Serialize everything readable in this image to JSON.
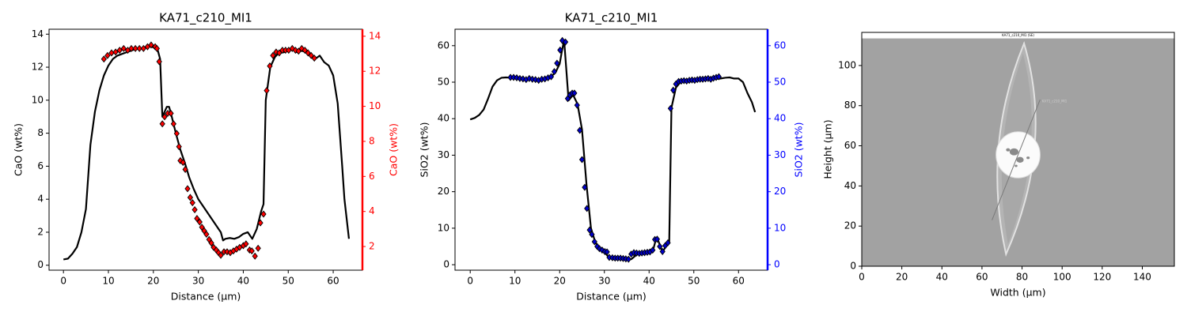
{
  "chart_data": [
    {
      "type": "line",
      "title": "KA71_c210_MI1",
      "x_label": "Distance (µm)",
      "y_label": "CaO (wt%)",
      "y2_label": "CaO (wt%)",
      "y2_color": "#ff0000",
      "xlim": [
        -3.2,
        66.5
      ],
      "xticks": [
        0,
        10,
        20,
        30,
        40,
        50,
        60
      ],
      "ylim": [
        -0.3,
        14.3
      ],
      "yticks": [
        0,
        2,
        4,
        6,
        8,
        10,
        12,
        14
      ],
      "y2lim": [
        0.65,
        14.4
      ],
      "y2ticks": [
        2,
        4,
        6,
        8,
        10,
        12,
        14
      ],
      "series": [
        {
          "color": "#000000",
          "marker": "none",
          "x": [
            0,
            1,
            2,
            3,
            4,
            5,
            6,
            7,
            8,
            9,
            10,
            11,
            12,
            13,
            14,
            15,
            16,
            17,
            18,
            19,
            20,
            21,
            21.5,
            22,
            22.5,
            23,
            23.5,
            24,
            25,
            26,
            27,
            28,
            29,
            30,
            31,
            32,
            33,
            34,
            35,
            35.5,
            36,
            37,
            38,
            39,
            40,
            41,
            42,
            43,
            44,
            44.5,
            45,
            46,
            47,
            48,
            49,
            50,
            51,
            52,
            53,
            54,
            55,
            56,
            57,
            58,
            59,
            60,
            61,
            62,
            62.5,
            63,
            63.5
          ],
          "values": [
            0.35,
            0.4,
            0.7,
            1.1,
            2.0,
            3.4,
            7.3,
            9.3,
            10.6,
            11.5,
            12.1,
            12.5,
            12.7,
            12.8,
            12.9,
            13.0,
            13.1,
            13.1,
            13.2,
            13.3,
            13.2,
            13.0,
            12.5,
            9.0,
            9.3,
            9.6,
            9.6,
            9.1,
            8.0,
            7.0,
            6.2,
            5.3,
            4.6,
            4.0,
            3.6,
            3.2,
            2.8,
            2.4,
            2.0,
            1.5,
            1.6,
            1.65,
            1.6,
            1.7,
            1.9,
            2.0,
            1.6,
            2.2,
            3.3,
            3.7,
            10.0,
            12.0,
            12.6,
            12.9,
            12.9,
            13.0,
            13.1,
            12.9,
            13.0,
            12.9,
            12.8,
            12.5,
            12.7,
            12.3,
            12.1,
            11.5,
            9.8,
            6.0,
            4.0,
            2.8,
            1.6
          ]
        },
        {
          "color": "#ff0000",
          "marker": "diamond",
          "axis": "y2",
          "x": [
            9.0,
            9.8,
            10.7,
            11.6,
            12.5,
            13.4,
            14.3,
            15.1,
            16.0,
            16.9,
            17.8,
            18.7,
            19.5,
            20.4,
            20.8,
            21.3,
            22.0,
            22.5,
            23.2,
            23.9,
            24.5,
            25.2,
            25.7,
            26.0,
            26.6,
            27.1,
            27.6,
            28.2,
            28.7,
            29.2,
            29.7,
            30.3,
            30.8,
            31.3,
            31.8,
            32.4,
            32.9,
            33.4,
            34.0,
            34.5,
            35.0,
            35.7,
            36.4,
            37.1,
            37.8,
            38.5,
            39.2,
            40.0,
            40.6,
            41.4,
            41.9,
            42.6,
            43.3,
            43.8,
            44.5,
            45.2,
            45.9,
            46.6,
            47.3,
            48.0,
            48.7,
            49.4,
            50.1,
            50.9,
            51.6,
            52.3,
            53.0,
            53.7,
            54.4,
            55.1,
            55.8
          ],
          "values": [
            12.7,
            12.9,
            13.05,
            13.1,
            13.2,
            13.3,
            13.2,
            13.3,
            13.3,
            13.3,
            13.3,
            13.4,
            13.5,
            13.4,
            13.3,
            12.55,
            9.0,
            9.4,
            9.6,
            9.6,
            9.0,
            8.45,
            7.7,
            6.9,
            6.8,
            6.4,
            5.3,
            4.8,
            4.5,
            4.1,
            3.6,
            3.4,
            3.1,
            2.9,
            2.7,
            2.4,
            2.2,
            1.95,
            1.8,
            1.65,
            1.5,
            1.7,
            1.7,
            1.65,
            1.75,
            1.85,
            1.95,
            2.05,
            2.15,
            1.8,
            1.75,
            1.45,
            1.9,
            3.35,
            3.85,
            10.9,
            12.3,
            12.9,
            13.1,
            13.05,
            13.2,
            13.2,
            13.2,
            13.3,
            13.2,
            13.15,
            13.3,
            13.2,
            13.05,
            12.9,
            12.75
          ]
        }
      ]
    },
    {
      "type": "line",
      "title": "KA71_c210_MI1",
      "x_label": "Distance (µm)",
      "y_label": "SiO2 (wt%)",
      "y2_label": "SiO2 (wt%)",
      "y2_color": "#0000ff",
      "xlim": [
        -3.4,
        66.5
      ],
      "xticks": [
        0,
        10,
        20,
        30,
        40,
        50,
        60
      ],
      "ylim": [
        -1.5,
        64.5
      ],
      "yticks": [
        0,
        10,
        20,
        30,
        40,
        50,
        60
      ],
      "y2lim": [
        -1.5,
        64.5
      ],
      "y2ticks": [
        0,
        10,
        20,
        30,
        40,
        50,
        60
      ],
      "series": [
        {
          "color": "#000000",
          "marker": "none",
          "x": [
            0,
            1,
            2,
            3,
            4,
            5,
            6,
            7,
            8,
            9,
            10,
            11,
            12,
            13,
            14,
            15,
            16,
            17,
            18,
            19,
            20,
            20.5,
            21,
            22,
            23,
            24,
            25,
            26,
            27,
            28,
            29,
            30,
            31,
            32,
            33,
            34,
            35,
            36,
            37,
            38,
            39,
            40,
            41,
            41.5,
            42,
            43,
            44,
            44.5,
            45,
            46,
            47,
            48,
            50,
            52,
            54,
            56,
            57,
            58,
            59,
            60,
            61,
            62,
            63,
            63.7
          ],
          "values": [
            39.8,
            40.2,
            41.0,
            42.5,
            45.5,
            48.8,
            50.5,
            51.2,
            51.3,
            51.2,
            51.0,
            51.0,
            50.8,
            50.9,
            50.7,
            50.6,
            50.7,
            51.0,
            51.5,
            52.5,
            55.0,
            58.5,
            61.5,
            45.0,
            46.5,
            44.0,
            37.0,
            22.0,
            10.0,
            6.0,
            4.5,
            3.5,
            2.0,
            1.5,
            1.5,
            1.5,
            1.5,
            1.5,
            2.5,
            3.3,
            3.4,
            3.6,
            4.5,
            6.8,
            6.7,
            3.5,
            5.5,
            6.0,
            43.0,
            48.5,
            50.0,
            50.3,
            50.5,
            50.7,
            50.8,
            51.0,
            51.2,
            51.3,
            51.0,
            51.0,
            50.0,
            47.0,
            44.5,
            41.8
          ]
        },
        {
          "color": "#0000cc",
          "marker": "diamond",
          "axis": "y2",
          "x": [
            9.0,
            9.7,
            10.4,
            11.1,
            11.8,
            12.5,
            13.2,
            13.9,
            14.6,
            15.3,
            16.0,
            16.7,
            17.4,
            18.1,
            18.8,
            19.4,
            20.1,
            20.6,
            21.3,
            21.8,
            22.3,
            22.8,
            23.3,
            23.9,
            24.5,
            25.0,
            25.6,
            26.1,
            26.7,
            27.2,
            27.8,
            28.4,
            28.9,
            29.5,
            30.1,
            30.6,
            31.1,
            31.8,
            32.4,
            33.0,
            33.6,
            34.2,
            34.8,
            35.4,
            36.0,
            36.6,
            37.2,
            37.8,
            38.4,
            39.0,
            39.6,
            40.2,
            40.8,
            41.3,
            41.8,
            42.4,
            43.0,
            43.6,
            44.2,
            44.8,
            45.4,
            46.0,
            46.6,
            47.2,
            47.8,
            48.4,
            49.0,
            49.6,
            50.2,
            50.8,
            51.4,
            52.0,
            52.6,
            53.2,
            53.8,
            54.4,
            55.0,
            55.6
          ],
          "values": [
            51.3,
            51.3,
            51.2,
            51.0,
            50.9,
            50.7,
            51.0,
            50.8,
            50.7,
            50.5,
            50.8,
            50.9,
            51.2,
            51.5,
            52.9,
            55.2,
            58.8,
            61.4,
            61.0,
            45.5,
            46.5,
            47.0,
            47.0,
            43.7,
            36.8,
            28.8,
            21.2,
            15.4,
            9.5,
            8.3,
            6.3,
            5.0,
            4.4,
            4.0,
            3.6,
            3.5,
            2.0,
            1.9,
            1.8,
            1.8,
            1.8,
            1.7,
            1.6,
            1.5,
            2.9,
            3.3,
            3.2,
            3.1,
            3.2,
            3.3,
            3.4,
            3.5,
            4.0,
            6.9,
            7.0,
            5.0,
            3.6,
            5.2,
            6.0,
            42.8,
            47.8,
            49.5,
            50.2,
            50.3,
            50.4,
            50.3,
            50.5,
            50.6,
            50.5,
            50.7,
            50.8,
            50.8,
            50.9,
            51.0,
            50.8,
            51.1,
            51.3,
            51.5
          ]
        }
      ]
    },
    {
      "type": "image",
      "image_title": "KA71_c210_MI1 (SE)",
      "annotation": "KA71_c210_MI1",
      "x_label": "Width (µm)",
      "y_label": "Height (µm)",
      "xlim": [
        0,
        156
      ],
      "xticks": [
        0,
        20,
        40,
        60,
        80,
        100,
        120,
        140
      ],
      "ylim": [
        0,
        116.5
      ],
      "yticks": [
        0,
        20,
        40,
        60,
        80,
        100
      ]
    }
  ]
}
